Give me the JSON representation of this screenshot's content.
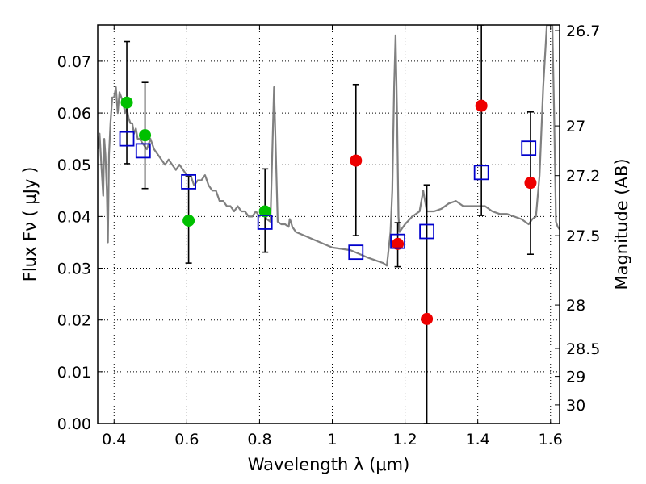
{
  "chart_data": {
    "type": "scatter",
    "xlabel": "Wavelength  λ (μm)",
    "ylabel": "Flux  Fν  ( μJy )",
    "ylabel_right": "Magnitude (AB)",
    "xlim": [
      0.355,
      1.625
    ],
    "ylim": [
      0.0,
      0.077
    ],
    "grid": true,
    "x_ticks": [
      0.4,
      0.6,
      0.8,
      1.0,
      1.2,
      1.4,
      1.6
    ],
    "x_tick_labels": [
      "0.4",
      "0.6",
      "0.8",
      "1",
      "1.2",
      "1.4",
      "1.6"
    ],
    "y_ticks": [
      0.0,
      0.01,
      0.02,
      0.03,
      0.04,
      0.05,
      0.06,
      0.07
    ],
    "y_tick_labels": [
      "0.00",
      "0.01",
      "0.02",
      "0.03",
      "0.04",
      "0.05",
      "0.06",
      "0.07"
    ],
    "mag_ticks": [
      {
        "label": "26.7",
        "flux": 0.0759
      },
      {
        "label": "27",
        "flux": 0.0575
      },
      {
        "label": "27.2",
        "flux": 0.0479
      },
      {
        "label": "27.5",
        "flux": 0.0363
      },
      {
        "label": "28",
        "flux": 0.0229
      },
      {
        "label": "28.5",
        "flux": 0.0145
      },
      {
        "label": "29",
        "flux": 0.0091
      },
      {
        "label": "30",
        "flux": 0.0036
      }
    ],
    "colors": {
      "model": "#808080",
      "green": "#00c000",
      "red": "#ee0000",
      "box": "#0000cc",
      "errorbar": "#000000"
    },
    "model_spectrum": {
      "name": "SED model",
      "x": [
        0.355,
        0.36,
        0.365,
        0.37,
        0.373,
        0.376,
        0.38,
        0.383,
        0.386,
        0.39,
        0.395,
        0.4,
        0.405,
        0.41,
        0.415,
        0.42,
        0.425,
        0.43,
        0.435,
        0.44,
        0.445,
        0.45,
        0.455,
        0.46,
        0.465,
        0.47,
        0.48,
        0.49,
        0.5,
        0.51,
        0.52,
        0.53,
        0.54,
        0.55,
        0.56,
        0.57,
        0.58,
        0.59,
        0.6,
        0.61,
        0.62,
        0.63,
        0.64,
        0.65,
        0.66,
        0.67,
        0.68,
        0.69,
        0.7,
        0.71,
        0.72,
        0.73,
        0.74,
        0.75,
        0.76,
        0.77,
        0.78,
        0.79,
        0.8,
        0.81,
        0.82,
        0.83,
        0.84,
        0.85,
        0.86,
        0.87,
        0.88,
        0.883,
        0.886,
        0.89,
        0.9,
        0.95,
        1.0,
        1.05,
        1.1,
        1.12,
        1.14,
        1.15,
        1.16,
        1.165,
        1.17,
        1.174,
        1.178,
        1.182,
        1.185,
        1.19,
        1.2,
        1.22,
        1.24,
        1.25,
        1.26,
        1.28,
        1.3,
        1.32,
        1.34,
        1.36,
        1.38,
        1.4,
        1.42,
        1.44,
        1.46,
        1.48,
        1.5,
        1.52,
        1.54,
        1.55,
        1.56,
        1.57,
        1.58,
        1.59,
        1.6,
        1.605,
        1.61,
        1.615,
        1.62,
        1.625
      ],
      "y": [
        0.053,
        0.056,
        0.05,
        0.044,
        0.055,
        0.052,
        0.045,
        0.035,
        0.052,
        0.058,
        0.063,
        0.063,
        0.065,
        0.06,
        0.064,
        0.063,
        0.062,
        0.06,
        0.061,
        0.059,
        0.058,
        0.058,
        0.056,
        0.057,
        0.055,
        0.055,
        0.054,
        0.053,
        0.055,
        0.053,
        0.052,
        0.051,
        0.05,
        0.051,
        0.05,
        0.049,
        0.05,
        0.049,
        0.048,
        0.048,
        0.046,
        0.047,
        0.047,
        0.048,
        0.046,
        0.045,
        0.045,
        0.043,
        0.043,
        0.042,
        0.042,
        0.041,
        0.042,
        0.041,
        0.041,
        0.04,
        0.04,
        0.041,
        0.04,
        0.041,
        0.0395,
        0.039,
        0.065,
        0.039,
        0.0385,
        0.0385,
        0.038,
        0.0395,
        0.039,
        0.038,
        0.037,
        0.0355,
        0.034,
        0.0335,
        0.032,
        0.0315,
        0.031,
        0.0305,
        0.037,
        0.045,
        0.065,
        0.075,
        0.06,
        0.04,
        0.037,
        0.0375,
        0.0385,
        0.04,
        0.041,
        0.045,
        0.041,
        0.041,
        0.0415,
        0.0425,
        0.043,
        0.042,
        0.042,
        0.042,
        0.042,
        0.041,
        0.0405,
        0.0405,
        0.04,
        0.0395,
        0.0385,
        0.0395,
        0.04,
        0.048,
        0.065,
        0.077,
        0.077,
        0.077,
        0.06,
        0.039,
        0.038,
        0.0375
      ]
    },
    "series": [
      {
        "name": "green points",
        "marker": "circle",
        "x": [
          0.435,
          0.485,
          0.605,
          0.815
        ],
        "y": [
          0.062,
          0.0557,
          0.0392,
          0.041
        ]
      },
      {
        "name": "red points",
        "marker": "circle",
        "x": [
          1.065,
          1.18,
          1.26,
          1.41,
          1.545
        ],
        "y": [
          0.0508,
          0.0347,
          0.0202,
          0.0614,
          0.0465
        ]
      },
      {
        "name": "open squares",
        "marker": "square",
        "x": [
          0.435,
          0.48,
          0.605,
          0.815,
          1.065,
          1.18,
          1.26,
          1.41,
          1.54
        ],
        "y": [
          0.055,
          0.0527,
          0.0467,
          0.0389,
          0.0331,
          0.0352,
          0.0371,
          0.0485,
          0.0532
        ]
      }
    ],
    "error_bars": [
      {
        "x": 0.435,
        "low": 0.0502,
        "high": 0.0738
      },
      {
        "x": 0.485,
        "low": 0.0454,
        "high": 0.0659
      },
      {
        "x": 0.605,
        "low": 0.031,
        "high": 0.0477
      },
      {
        "x": 0.815,
        "low": 0.0331,
        "high": 0.0492
      },
      {
        "x": 1.065,
        "low": 0.0363,
        "high": 0.0655
      },
      {
        "x": 1.18,
        "low": 0.0303,
        "high": 0.0388
      },
      {
        "x": 1.26,
        "low": 0.0,
        "high": 0.0461
      },
      {
        "x": 1.41,
        "low": 0.0402,
        "high": 0.077
      },
      {
        "x": 1.545,
        "low": 0.0327,
        "high": 0.0602
      }
    ]
  }
}
